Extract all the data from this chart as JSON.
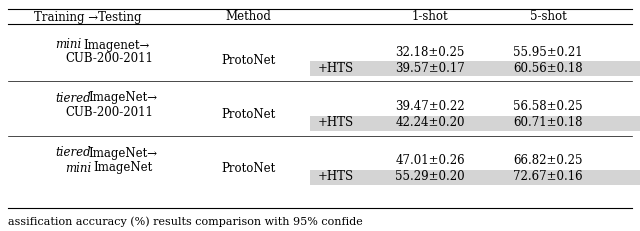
{
  "header": [
    "Training →Testing",
    "Method",
    "1-shot",
    "5-shot"
  ],
  "rows": [
    {
      "one_shot_base": "32.18±0.25",
      "five_shot_base": "55.95±0.21",
      "one_shot_hts": "39.57±0.17",
      "five_shot_hts": "60.56±0.18"
    },
    {
      "one_shot_base": "39.47±0.22",
      "five_shot_base": "56.58±0.25",
      "one_shot_hts": "42.24±0.20",
      "five_shot_hts": "60.71±0.18"
    },
    {
      "one_shot_base": "47.01±0.26",
      "five_shot_base": "66.82±0.25",
      "one_shot_hts": "55.29±0.20",
      "five_shot_hts": "72.67±0.16"
    }
  ],
  "caption": "assification accuracy (%) results comparison with 95% confide",
  "highlight_color": "#d4d4d4",
  "fontsize": 8.5,
  "fig_width": 6.4,
  "fig_height": 2.31
}
